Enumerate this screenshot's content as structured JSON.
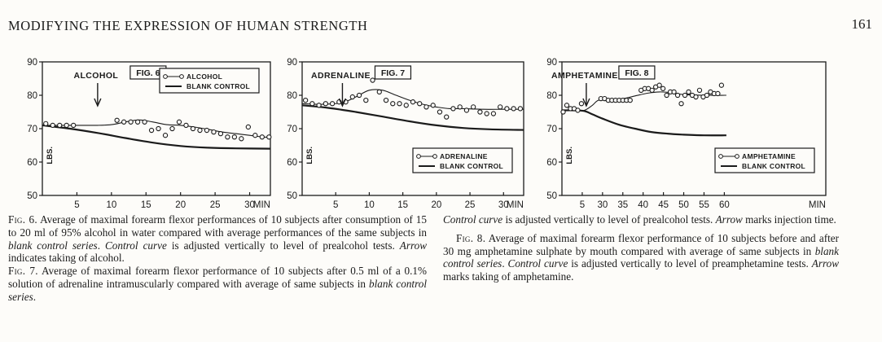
{
  "header": {
    "running_head": "MODIFYING THE EXPRESSION OF HUMAN STRENGTH",
    "page_number": "161"
  },
  "chart_data": [
    {
      "type": "line",
      "figure_label": "FIG. 6",
      "drug_label": "ALCOHOL",
      "ylabel": "LBS.",
      "ylim": [
        50,
        90
      ],
      "xlim": [
        0,
        33
      ],
      "y_ticks": [
        50,
        60,
        70,
        80,
        90
      ],
      "x_ticks": [
        5,
        10,
        15,
        20,
        25,
        30
      ],
      "x_tick_labels": [
        "5",
        "10",
        "15",
        "20",
        "25",
        "30"
      ],
      "x_unit": "MIN",
      "arrow_x": 8,
      "legend": {
        "placement": "top-right",
        "points_series": "ALCOHOL",
        "control_series": "BLANK CONTROL"
      },
      "points": {
        "name": "ALCOHOL",
        "x": [
          0.5,
          1.5,
          2.5,
          3.5,
          4.5,
          10.8,
          11.8,
          12.8,
          13.8,
          14.8,
          15.8,
          16.8,
          17.8,
          18.8,
          19.8,
          20.8,
          21.8,
          22.8,
          23.8,
          24.8,
          25.8,
          26.8,
          27.8,
          28.8,
          29.8,
          30.8,
          31.8,
          32.8
        ],
        "y": [
          71.5,
          71,
          71,
          71,
          71,
          72.5,
          72,
          72,
          72,
          72,
          69.5,
          70,
          68,
          70,
          72,
          71,
          70,
          69.5,
          69.5,
          69,
          68.5,
          67.5,
          67.5,
          67,
          70.5,
          68,
          67.5,
          67.5
        ]
      },
      "fit": {
        "x": [
          0,
          4,
          8,
          10,
          12,
          14,
          16,
          18,
          20,
          22,
          24,
          26,
          28,
          30,
          32,
          33
        ],
        "y": [
          71,
          71,
          71,
          71.2,
          72,
          72.6,
          72,
          71.2,
          71,
          70.5,
          69.8,
          69,
          68.5,
          68,
          67.5,
          67.5
        ]
      },
      "control": {
        "name": "BLANK CONTROL",
        "x": [
          0,
          4,
          8,
          12,
          16,
          20,
          24,
          28,
          33
        ],
        "y": [
          71,
          70,
          68.7,
          67.2,
          65.8,
          64.8,
          64.3,
          64.1,
          64
        ]
      }
    },
    {
      "type": "line",
      "figure_label": "FIG. 7",
      "drug_label": "ADRENALINE",
      "ylabel": "LBS.",
      "ylim": [
        50,
        90
      ],
      "xlim": [
        0,
        33
      ],
      "y_ticks": [
        50,
        60,
        70,
        80,
        90
      ],
      "x_ticks": [
        5,
        10,
        15,
        20,
        25,
        30
      ],
      "x_tick_labels": [
        "5",
        "10",
        "15",
        "20",
        "25",
        "30"
      ],
      "x_unit": "MIN",
      "arrow_x": 6,
      "legend": {
        "placement": "bottom-right",
        "points_series": "ADRENALINE",
        "control_series": "BLANK CONTROL"
      },
      "points": {
        "name": "ADRENALINE",
        "x": [
          0.5,
          1.5,
          2.5,
          3.5,
          4.5,
          5.5,
          6.5,
          7.5,
          8.5,
          9.5,
          10.5,
          11.5,
          12.5,
          13.5,
          14.5,
          15.5,
          16.5,
          17.5,
          18.5,
          19.5,
          20.5,
          21.5,
          22.5,
          23.5,
          24.5,
          25.5,
          26.5,
          27.5,
          28.5,
          29.5,
          30.5,
          31.5,
          32.5
        ],
        "y": [
          78.5,
          77.5,
          77,
          77.5,
          77.5,
          78,
          78,
          79.5,
          80,
          78.5,
          84.5,
          81,
          78.5,
          77.5,
          77.5,
          77,
          78,
          77.5,
          76.5,
          77,
          75,
          73.5,
          76,
          76.5,
          75.5,
          76.5,
          75,
          74.5,
          74.5,
          76.5,
          76,
          76,
          76
        ]
      },
      "fit": {
        "x": [
          0,
          3,
          6,
          8,
          10,
          12,
          14,
          16,
          18,
          20,
          22,
          24,
          27,
          30,
          33
        ],
        "y": [
          77.5,
          77.3,
          77.8,
          79.5,
          81.5,
          81.5,
          80,
          78.5,
          77.3,
          76.5,
          76,
          76,
          75.8,
          75.8,
          75.8
        ]
      },
      "control": {
        "name": "BLANK CONTROL",
        "x": [
          0,
          4,
          8,
          12,
          16,
          20,
          24,
          28,
          33
        ],
        "y": [
          77,
          76.2,
          75,
          73.6,
          72.2,
          71,
          70.2,
          69.8,
          69.6
        ]
      }
    },
    {
      "type": "line",
      "figure_label": "FIG. 8",
      "drug_label": "AMPHETAMINE",
      "ylabel": "LBS.",
      "ylim": [
        50,
        90
      ],
      "xlim": [
        0,
        65
      ],
      "y_ticks": [
        50,
        60,
        70,
        80,
        90
      ],
      "x_ticks": [
        5,
        30,
        35,
        40,
        45,
        50,
        55,
        60
      ],
      "x_tick_labels": [
        "5",
        "30",
        "35",
        "40",
        "45",
        "50",
        "55",
        "60"
      ],
      "x_tick_positions": [
        5,
        10,
        15,
        20,
        25,
        30,
        35,
        40
      ],
      "x_unit": "MIN",
      "arrow_x": 6,
      "legend": {
        "placement": "bottom-right",
        "points_series": "AMPHETAMINE",
        "control_series": "BLANK CONTROL"
      },
      "points": {
        "name": "AMPHETAMINE",
        "x": [
          0.3,
          1.2,
          2.1,
          3.0,
          3.9,
          4.8,
          9.6,
          10.5,
          11.4,
          12.3,
          13.2,
          14.1,
          15.0,
          15.9,
          16.8,
          19.5,
          20.4,
          21.3,
          22.2,
          23.1,
          24.0,
          24.9,
          25.8,
          26.7,
          27.6,
          28.5,
          29.4,
          30.3,
          31.2,
          32.1,
          33.0,
          33.9,
          34.8,
          35.7,
          36.6,
          37.5,
          38.4,
          39.3
        ],
        "y": [
          75,
          77,
          76,
          76,
          75.5,
          77.5,
          79,
          79,
          78.5,
          78.5,
          78.5,
          78.5,
          78.5,
          78.5,
          78.5,
          81.5,
          82,
          82,
          81.5,
          82.5,
          83,
          82,
          80,
          81,
          81,
          80,
          77.5,
          80,
          81,
          80,
          79.5,
          81.5,
          79.5,
          80,
          81,
          80.5,
          80.5,
          83
        ]
      },
      "fit": {
        "x": [
          0,
          3,
          5.5,
          7.5,
          9,
          12,
          15,
          18,
          21,
          24,
          27,
          30,
          35,
          40.5
        ],
        "y": [
          75.5,
          75.5,
          75.5,
          77,
          78.5,
          78.8,
          79,
          79.8,
          80.6,
          81,
          80.8,
          80.2,
          80,
          80
        ]
      },
      "control": {
        "name": "BLANK CONTROL",
        "x": [
          0,
          3,
          5.5,
          7.5,
          10,
          14,
          18,
          22,
          26,
          30,
          35,
          40.5
        ],
        "y": [
          75.5,
          75.5,
          75.3,
          74.3,
          73,
          71.2,
          70,
          69,
          68.5,
          68.2,
          68,
          68
        ]
      }
    }
  ],
  "captions": {
    "fig6": {
      "label": "Fig. 6.",
      "parts": [
        {
          "t": "Average of maximal forearm flexor performances of 10 subjects after consumption of 15 to 20 ml of 95% alcohol in water compared with average performances of the same subjects in "
        },
        {
          "t": "blank control series",
          "i": true
        },
        {
          "t": ". "
        },
        {
          "t": "Control curve",
          "i": true
        },
        {
          "t": " is adjusted vertically to level of prealcohol tests. "
        },
        {
          "t": "Arrow",
          "i": true
        },
        {
          "t": " indicates taking of alcohol."
        }
      ]
    },
    "fig7": {
      "label": "Fig. 7.",
      "parts": [
        {
          "t": "Average of maximal forearm flexor performance of 10 subjects after 0.5 ml of a 0.1% solution of adrenaline intramuscularly compared with average of same subjects in "
        },
        {
          "t": "blank control series",
          "i": true
        },
        {
          "t": "."
        }
      ]
    },
    "fig7_cont": {
      "parts": [
        {
          "t": "Control curve",
          "i": true
        },
        {
          "t": " is adjusted vertically to level of prealcohol tests. "
        },
        {
          "t": "Arrow",
          "i": true
        },
        {
          "t": " marks injection time."
        }
      ]
    },
    "fig8": {
      "label": "Fig. 8.",
      "parts": [
        {
          "t": "Average of maximal forearm flexor performance of 10 subjects before and after 30 mg amphetamine sulphate by mouth compared with average of same subjects in "
        },
        {
          "t": "blank control series",
          "i": true
        },
        {
          "t": ". "
        },
        {
          "t": "Control curve",
          "i": true
        },
        {
          "t": " is adjusted vertically to level of preamphetamine tests. "
        },
        {
          "t": "Arrow",
          "i": true
        },
        {
          "t": " marks taking of amphetamine."
        }
      ]
    }
  }
}
